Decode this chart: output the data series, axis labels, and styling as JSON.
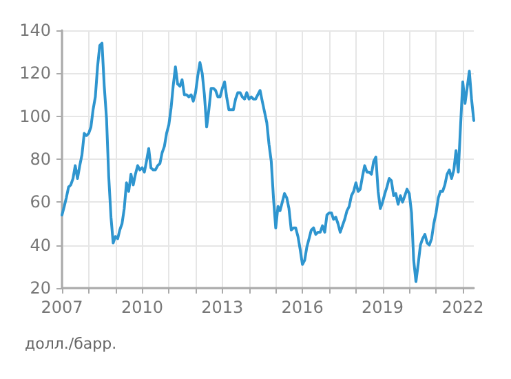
{
  "chart_data": {
    "type": "line",
    "annotations": [
      "долл./барр."
    ],
    "x": [
      "2007-01",
      "2007-02",
      "2007-03",
      "2007-04",
      "2007-05",
      "2007-06",
      "2007-07",
      "2007-08",
      "2007-09",
      "2007-10",
      "2007-11",
      "2007-12",
      "2008-01",
      "2008-02",
      "2008-03",
      "2008-04",
      "2008-05",
      "2008-06",
      "2008-07",
      "2008-08",
      "2008-09",
      "2008-10",
      "2008-11",
      "2008-12",
      "2009-01",
      "2009-02",
      "2009-03",
      "2009-04",
      "2009-05",
      "2009-06",
      "2009-07",
      "2009-08",
      "2009-09",
      "2009-10",
      "2009-11",
      "2009-12",
      "2010-01",
      "2010-02",
      "2010-03",
      "2010-04",
      "2010-05",
      "2010-06",
      "2010-07",
      "2010-08",
      "2010-09",
      "2010-10",
      "2010-11",
      "2010-12",
      "2011-01",
      "2011-02",
      "2011-03",
      "2011-04",
      "2011-05",
      "2011-06",
      "2011-07",
      "2011-08",
      "2011-09",
      "2011-10",
      "2011-11",
      "2011-12",
      "2012-01",
      "2012-02",
      "2012-03",
      "2012-04",
      "2012-05",
      "2012-06",
      "2012-07",
      "2012-08",
      "2012-09",
      "2012-10",
      "2012-11",
      "2012-12",
      "2013-01",
      "2013-02",
      "2013-03",
      "2013-04",
      "2013-05",
      "2013-06",
      "2013-07",
      "2013-08",
      "2013-09",
      "2013-10",
      "2013-11",
      "2013-12",
      "2014-01",
      "2014-02",
      "2014-03",
      "2014-04",
      "2014-05",
      "2014-06",
      "2014-07",
      "2014-08",
      "2014-09",
      "2014-10",
      "2014-11",
      "2014-12",
      "2015-01",
      "2015-02",
      "2015-03",
      "2015-04",
      "2015-05",
      "2015-06",
      "2015-07",
      "2015-08",
      "2015-09",
      "2015-10",
      "2015-11",
      "2015-12",
      "2016-01",
      "2016-02",
      "2016-03",
      "2016-04",
      "2016-05",
      "2016-06",
      "2016-07",
      "2016-08",
      "2016-09",
      "2016-10",
      "2016-11",
      "2016-12",
      "2017-01",
      "2017-02",
      "2017-03",
      "2017-04",
      "2017-05",
      "2017-06",
      "2017-07",
      "2017-08",
      "2017-09",
      "2017-10",
      "2017-11",
      "2017-12",
      "2018-01",
      "2018-02",
      "2018-03",
      "2018-04",
      "2018-05",
      "2018-06",
      "2018-07",
      "2018-08",
      "2018-09",
      "2018-10",
      "2018-11",
      "2018-12",
      "2019-01",
      "2019-02",
      "2019-03",
      "2019-04",
      "2019-05",
      "2019-06",
      "2019-07",
      "2019-08",
      "2019-09",
      "2019-10",
      "2019-11",
      "2019-12",
      "2020-01",
      "2020-02",
      "2020-03",
      "2020-04",
      "2020-05",
      "2020-06",
      "2020-07",
      "2020-08",
      "2020-09",
      "2020-10",
      "2020-11",
      "2020-12",
      "2021-01",
      "2021-02",
      "2021-03",
      "2021-04",
      "2021-05",
      "2021-06",
      "2021-07",
      "2021-08",
      "2021-09",
      "2021-10",
      "2021-11",
      "2021-12",
      "2022-01",
      "2022-02",
      "2022-03",
      "2022-04",
      "2022-05",
      "2022-06"
    ],
    "series": [
      {
        "color": "#2e95cf",
        "values": [
          54,
          58,
          62,
          67,
          68,
          71,
          77,
          71,
          77,
          82,
          92,
          91,
          92,
          95,
          103,
          109,
          123,
          133,
          134,
          114,
          99,
          72,
          53,
          41,
          44,
          43,
          47,
          50,
          57,
          69,
          65,
          73,
          68,
          73,
          77,
          75,
          76,
          74,
          79,
          85,
          76,
          75,
          75,
          77,
          78,
          83,
          86,
          92,
          96,
          104,
          114,
          123,
          115,
          114,
          117,
          110,
          110,
          109,
          110,
          107,
          111,
          119,
          125,
          120,
          110,
          95,
          103,
          113,
          113,
          112,
          109,
          109,
          113,
          116,
          109,
          103,
          103,
          103,
          108,
          111,
          111,
          109,
          108,
          111,
          108,
          109,
          108,
          108,
          110,
          112,
          107,
          102,
          97,
          87,
          79,
          62,
          48,
          58,
          56,
          60,
          64,
          62,
          57,
          47,
          48,
          48,
          44,
          38,
          31,
          33,
          39,
          43,
          47,
          48,
          45,
          46,
          46,
          49,
          46,
          54,
          55,
          55,
          52,
          53,
          50,
          46,
          49,
          52,
          56,
          58,
          63,
          65,
          69,
          65,
          66,
          72,
          77,
          74,
          74,
          73,
          79,
          81,
          65,
          57,
          60,
          64,
          67,
          71,
          70,
          63,
          64,
          59,
          63,
          60,
          63,
          66,
          64,
          55,
          33,
          23,
          31,
          40,
          43,
          45,
          41,
          40,
          43,
          50,
          55,
          62,
          65,
          65,
          68,
          73,
          75,
          71,
          75,
          84,
          74,
          95,
          116,
          106,
          113,
          121,
          108,
          98
        ]
      }
    ],
    "xlim": [
      "2007-01",
      "2022-06"
    ],
    "xticks": [
      "2007",
      {
        "value": "2008",
        "label": null
      },
      {
        "value": "2009",
        "label": null
      },
      "2010",
      {
        "value": "2011",
        "label": null
      },
      {
        "value": "2012",
        "label": null
      },
      "2013",
      {
        "value": "2014",
        "label": null
      },
      {
        "value": "2015",
        "label": null
      },
      "2016",
      {
        "value": "2017",
        "label": null
      },
      {
        "value": "2018",
        "label": null
      },
      "2019",
      {
        "value": "2020",
        "label": null
      },
      {
        "value": "2021",
        "label": null
      },
      "2022"
    ],
    "ylim": [
      20,
      140
    ],
    "yticks": [
      20,
      40,
      60,
      80,
      100,
      120,
      140
    ],
    "grid": true,
    "marker": "none",
    "line_style": "solid"
  }
}
